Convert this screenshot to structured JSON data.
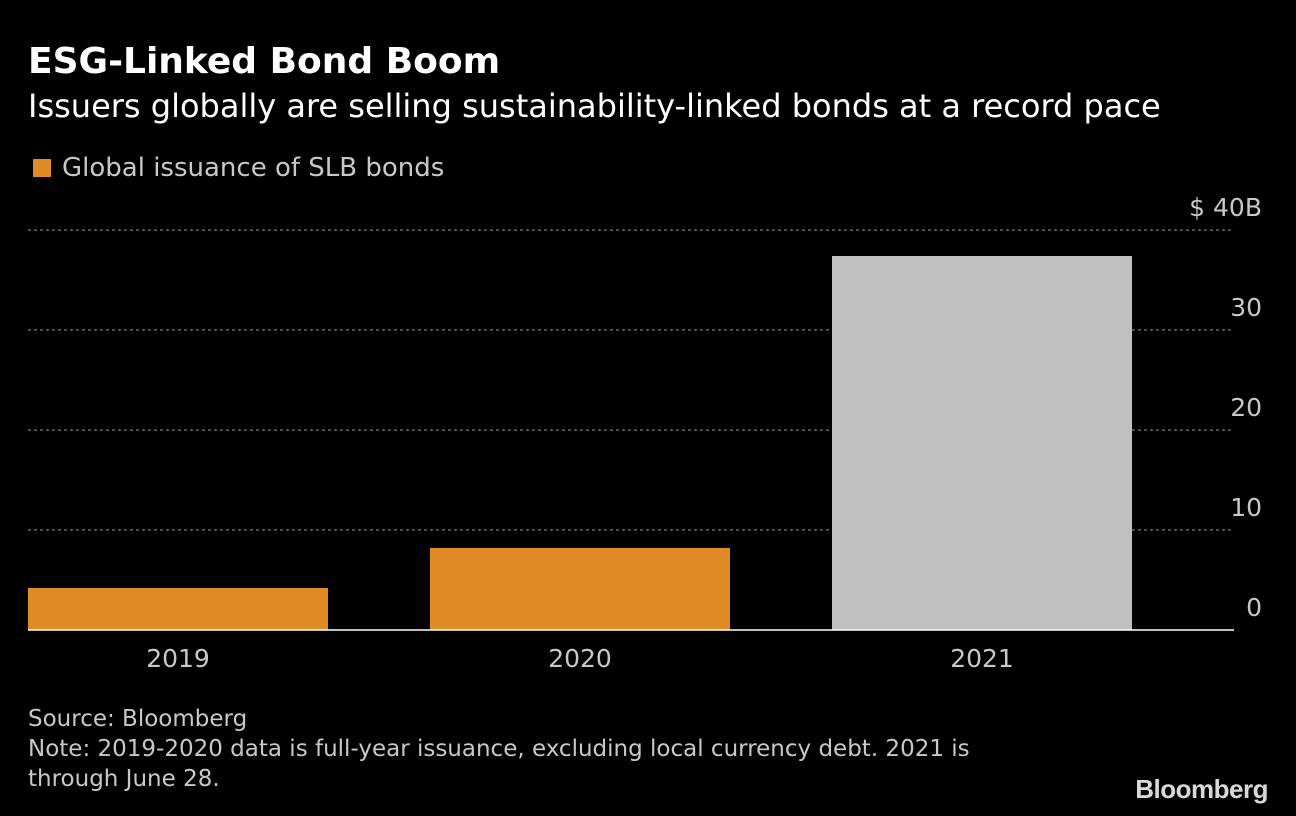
{
  "chart_data": {
    "type": "bar",
    "title": "ESG-Linked Bond Boom",
    "subtitle": "Issuers globally are selling sustainability-linked bonds at a record pace",
    "legend": [
      {
        "label": "Global issuance of SLB bonds",
        "color": "#e08b25"
      }
    ],
    "categories": [
      "2019",
      "2020",
      "2021"
    ],
    "values": [
      4.2,
      8.2,
      37.4
    ],
    "bar_colors": [
      "#e08b25",
      "#e08b25",
      "#c0c0c0"
    ],
    "ylim": [
      0,
      40
    ],
    "y_ticks": [
      {
        "value": 0,
        "label": "0"
      },
      {
        "value": 10,
        "label": "10"
      },
      {
        "value": 20,
        "label": "20"
      },
      {
        "value": 30,
        "label": "30"
      },
      {
        "value": 40,
        "label": "$ 40B"
      }
    ],
    "xlabel": "",
    "ylabel": "",
    "grid": true,
    "axis_side": "right"
  },
  "footer": {
    "source": "Source: Bloomberg",
    "note_line1": "Note: 2019-2020 data is full-year issuance, excluding local currency debt. 2021 is",
    "note_line2": "through June 28."
  },
  "brand": {
    "name": "Bloomberg"
  },
  "colors": {
    "background": "#000000",
    "grid": "#7a7a7a",
    "axis": "#ffffff",
    "tick_text": "#c8c8c8"
  }
}
